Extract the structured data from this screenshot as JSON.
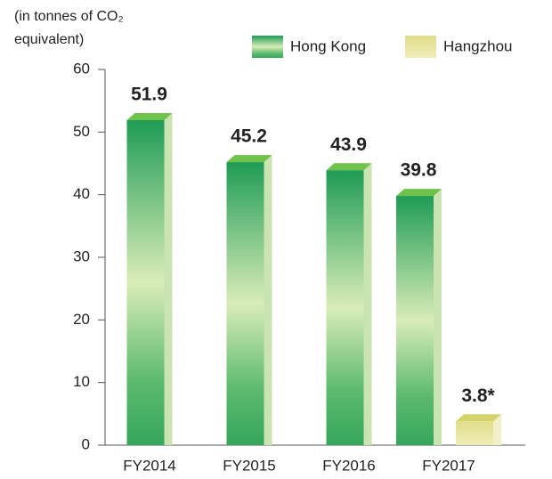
{
  "chart_data": {
    "type": "bar",
    "y_label": "(in tonnes of CO₂ equivalent)",
    "categories": [
      "FY2014",
      "FY2015",
      "FY2016",
      "FY2017"
    ],
    "series": [
      {
        "name": "Hong Kong",
        "color": "#2fa85c",
        "values": [
          51.9,
          45.2,
          43.9,
          39.8
        ]
      },
      {
        "name": "Hangzhou",
        "color": "#e4e29a",
        "values": [
          null,
          null,
          null,
          3.8
        ],
        "value_labels": [
          null,
          null,
          null,
          "3.8*"
        ]
      }
    ],
    "ylim": [
      0,
      60
    ],
    "yticks": [
      0,
      10,
      20,
      30,
      40,
      50,
      60
    ],
    "grid": false,
    "legend": "top"
  }
}
